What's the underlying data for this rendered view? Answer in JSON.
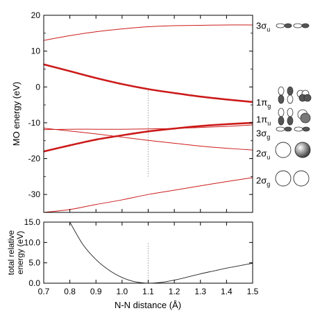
{
  "chart_data": [
    {
      "type": "line",
      "title": "",
      "xlabel": "",
      "ylabel": "MO energy (eV)",
      "xlim": [
        0.7,
        1.5
      ],
      "ylim": [
        -35,
        20
      ],
      "xticks": [
        0.7,
        0.8,
        0.9,
        1.0,
        1.1,
        1.2,
        1.3,
        1.4,
        1.5
      ],
      "yticks": [
        20,
        10,
        0,
        -10,
        -20,
        -30
      ],
      "ytick_labels": [
        "20",
        "10",
        "0",
        "-10",
        "-20",
        "-30"
      ],
      "reference_x": 1.1,
      "colors": {
        "orbital_line": "#cc1a1a",
        "reference_line": "#888888"
      },
      "series": [
        {
          "key": "3su",
          "x": [
            0.7,
            0.8,
            0.9,
            1.0,
            1.1,
            1.2,
            1.3,
            1.4,
            1.5
          ],
          "y": [
            13.0,
            14.3,
            15.4,
            16.2,
            16.8,
            17.1,
            17.2,
            17.3,
            17.3
          ],
          "weight": "thin"
        },
        {
          "key": "1pg",
          "x": [
            0.7,
            0.8,
            0.9,
            1.0,
            1.1,
            1.2,
            1.3,
            1.4,
            1.5
          ],
          "y": [
            6.3,
            4.4,
            2.5,
            0.8,
            -0.6,
            -1.7,
            -2.7,
            -3.5,
            -4.2
          ],
          "weight": "thick"
        },
        {
          "key": "1pu",
          "x": [
            0.7,
            0.8,
            0.9,
            1.0,
            1.1,
            1.2,
            1.3,
            1.4,
            1.5
          ],
          "y": [
            -18.0,
            -16.3,
            -14.7,
            -13.5,
            -12.4,
            -11.6,
            -10.9,
            -10.4,
            -10.0
          ],
          "weight": "thick"
        },
        {
          "key": "3sg",
          "x": [
            0.7,
            0.8,
            0.9,
            1.0,
            1.1,
            1.2,
            1.3,
            1.4,
            1.5
          ],
          "y": [
            -11.9,
            -11.8,
            -11.8,
            -11.8,
            -11.7,
            -11.6,
            -11.3,
            -11.0,
            -10.6
          ],
          "weight": "thin"
        },
        {
          "key": "2su",
          "x": [
            0.7,
            0.8,
            0.9,
            1.0,
            1.1,
            1.2,
            1.3,
            1.4,
            1.5
          ],
          "y": [
            -11.5,
            -12.3,
            -13.1,
            -14.0,
            -14.9,
            -15.7,
            -16.5,
            -17.1,
            -17.6
          ],
          "weight": "thin"
        },
        {
          "key": "2sg",
          "x": [
            0.7,
            0.8,
            0.9,
            1.0,
            1.1,
            1.2,
            1.3,
            1.4,
            1.5
          ],
          "y": [
            -35.0,
            -34.2,
            -32.8,
            -31.5,
            -30.0,
            -28.8,
            -27.6,
            -26.4,
            -25.3
          ],
          "weight": "thin"
        }
      ],
      "orbital_labels": [
        {
          "key": "3su",
          "main": "3σ",
          "sub": "u",
          "y": 17.2
        },
        {
          "key": "1pg",
          "main": "1π",
          "sub": "g",
          "y": -4.2
        },
        {
          "key": "1pu",
          "main": "1π",
          "sub": "u",
          "y": -9.0
        },
        {
          "key": "3sg",
          "main": "3σ",
          "sub": "g",
          "y": -12.8
        },
        {
          "key": "2su",
          "main": "2σ",
          "sub": "u",
          "y": -18.4
        },
        {
          "key": "2sg",
          "main": "2σ",
          "sub": "g",
          "y": -26.0
        }
      ]
    },
    {
      "type": "line",
      "title": "",
      "xlabel": "N-N distance (Å)",
      "ylabel": "total relative energy (eV)",
      "ylabel_lines": [
        "total relative",
        "energy (eV)"
      ],
      "xlim": [
        0.7,
        1.5
      ],
      "ylim": [
        0,
        15
      ],
      "xticks": [
        0.7,
        0.8,
        0.9,
        1.0,
        1.1,
        1.2,
        1.3,
        1.4,
        1.5
      ],
      "xtick_labels": [
        "0.7",
        "0.8",
        "0.9",
        "1.0",
        "1.1",
        "1.2",
        "1.3",
        "1.4",
        "1.5"
      ],
      "yticks": [
        0,
        5,
        10,
        15
      ],
      "ytick_labels": [
        "0.0",
        "5.0",
        "10.0",
        "15.0"
      ],
      "reference_x": 1.1,
      "colors": {
        "line": "#222222",
        "reference_line": "#888888"
      },
      "series": [
        {
          "key": "total",
          "x": [
            0.8,
            0.85,
            0.9,
            0.95,
            1.0,
            1.05,
            1.1,
            1.15,
            1.2,
            1.25,
            1.3,
            1.35,
            1.4,
            1.45,
            1.5
          ],
          "y": [
            15.0,
            9.5,
            5.8,
            3.2,
            1.4,
            0.35,
            0.0,
            0.2,
            0.75,
            1.5,
            2.3,
            3.0,
            3.7,
            4.3,
            4.9
          ]
        }
      ]
    }
  ]
}
